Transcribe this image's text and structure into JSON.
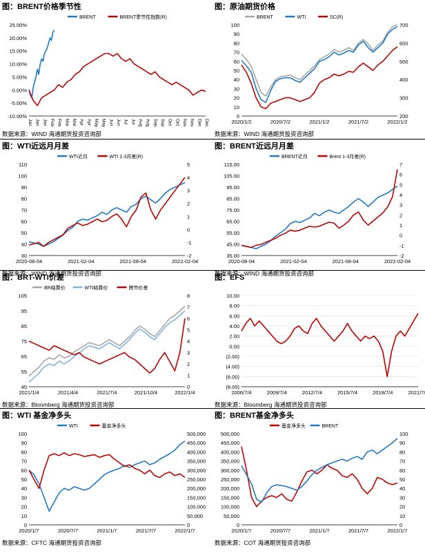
{
  "chart_data": [
    {
      "type": "line",
      "title": "图：BRENT价格季节性",
      "source": "数据来源：WIND    海通期货投资咨询部",
      "legend_position": "top",
      "x_ticks": [
        "Jan",
        "Jan",
        "Jan",
        "Feb",
        "Feb",
        "Mar",
        "Mar",
        "Apr",
        "Apr",
        "May",
        "May",
        "Jun",
        "Jun",
        "Jul",
        "Jul",
        "Aug",
        "Aug",
        "Sep",
        "Sep",
        "Oct",
        "Oct",
        "Nov",
        "Nov",
        "Dec",
        "Dec"
      ],
      "y_left_ticks": [
        "25.00%",
        "20.00%",
        "15.00%",
        "10.00%",
        "5.00%",
        "0.00%",
        "-5.00%",
        "-10.00%"
      ],
      "y_left_range": [
        -10,
        25
      ],
      "series": [
        {
          "name": "BRENT",
          "color": "#1f77c8",
          "axis": "left",
          "x": [
            0,
            2,
            4,
            6,
            8,
            10,
            12,
            14,
            16,
            18,
            20,
            22,
            24,
            26,
            28,
            30,
            32,
            34,
            36
          ],
          "y": [
            0,
            -2,
            -3,
            1,
            3,
            5,
            8,
            6,
            10,
            12,
            11,
            14,
            15,
            16,
            18,
            20,
            19,
            22,
            23
          ]
        },
        {
          "name": "BRENT季节性指数(R)",
          "color": "#c00000",
          "axis": "left",
          "x": [
            0,
            6,
            12,
            18,
            24,
            30,
            36,
            42,
            48,
            54,
            60,
            66,
            72,
            78,
            84,
            90,
            96,
            102,
            108,
            114,
            120,
            126,
            132,
            138,
            144,
            150,
            156,
            162,
            168,
            174,
            180,
            186,
            192,
            198,
            204,
            210,
            216,
            222,
            228,
            234,
            240,
            246,
            252
          ],
          "y": [
            0,
            -4,
            -6,
            -3,
            -2,
            -1,
            0,
            2,
            1,
            3,
            4,
            6,
            7,
            9,
            10,
            11,
            12,
            13,
            14,
            14,
            13,
            14,
            12,
            11,
            12,
            10,
            9,
            8,
            7,
            6,
            7,
            5,
            4,
            3,
            2,
            3,
            2,
            1,
            0,
            -2,
            -1,
            0,
            -0.5
          ]
        }
      ]
    },
    {
      "type": "line",
      "title": "图：原油期货价格",
      "source": "数据来源：WIND    海通期货投资咨询部",
      "legend_position": "top",
      "x_ticks": [
        "2020/1/2",
        "2020/7/2",
        "2021/1/2",
        "2021/7/2",
        "2022/1/2"
      ],
      "y_left_ticks": [
        "100",
        "90",
        "80",
        "70",
        "60",
        "50",
        "40",
        "30",
        "20",
        "10",
        "0"
      ],
      "y_right_ticks": [
        "700",
        "600",
        "500",
        "400",
        "300",
        "200"
      ],
      "y_left_range": [
        0,
        100
      ],
      "y_right_range": [
        200,
        700
      ],
      "series": [
        {
          "name": "BRENT",
          "color": "#a6a6a6",
          "axis": "left",
          "y": [
            68,
            62,
            55,
            40,
            26,
            22,
            32,
            40,
            43,
            44,
            45,
            42,
            40,
            45,
            50,
            55,
            62,
            65,
            68,
            73,
            70,
            72,
            75,
            72,
            80,
            84,
            79,
            72,
            78,
            82,
            92,
            98,
            100
          ]
        },
        {
          "name": "WTI",
          "color": "#1f77c8",
          "axis": "left",
          "y": [
            61,
            55,
            48,
            30,
            18,
            15,
            28,
            38,
            41,
            42,
            42,
            39,
            37,
            42,
            47,
            52,
            60,
            62,
            65,
            70,
            67,
            69,
            72,
            70,
            78,
            82,
            75,
            70,
            75,
            80,
            90,
            95,
            98
          ]
        },
        {
          "name": "SC(R)",
          "color": "#c00000",
          "axis": "right",
          "y": [
            480,
            440,
            380,
            300,
            250,
            240,
            270,
            280,
            290,
            300,
            300,
            290,
            280,
            290,
            300,
            330,
            380,
            400,
            410,
            430,
            420,
            430,
            445,
            440,
            470,
            490,
            470,
            450,
            480,
            500,
            530,
            560,
            580
          ]
        }
      ]
    },
    {
      "type": "line",
      "title": "图：WTI近远月月差",
      "source": "数据来源：WIND    海通期货投资咨询部",
      "legend_position": "top",
      "x_ticks": [
        "2020-08-04",
        "2021-02-04",
        "2021-08-04",
        "2022-02-04"
      ],
      "y_left_ticks": [
        "110",
        "100",
        "90",
        "80",
        "70",
        "60",
        "50",
        "40",
        "30"
      ],
      "y_right_ticks": [
        "5",
        "4",
        "3",
        "2",
        "1",
        "0",
        "-1",
        "-2"
      ],
      "y_left_range": [
        30,
        110
      ],
      "y_right_range": [
        -2,
        5
      ],
      "series": [
        {
          "name": "WTI近月",
          "color": "#1f77c8",
          "axis": "left",
          "y": [
            42,
            41,
            40,
            38,
            40,
            42,
            45,
            48,
            52,
            55,
            60,
            62,
            61,
            63,
            65,
            68,
            66,
            70,
            72,
            70,
            68,
            73,
            75,
            80,
            82,
            79,
            76,
            80,
            85,
            88,
            90,
            92,
            94
          ]
        },
        {
          "name": "WTI 1-3月差(R)",
          "color": "#c00000",
          "axis": "right",
          "y": [
            -1.2,
            -1.1,
            -1.0,
            -1.3,
            -1.0,
            -0.8,
            -0.6,
            -0.4,
            0.1,
            0.3,
            0.5,
            0.3,
            0.4,
            0.6,
            0.8,
            0.6,
            0.7,
            1.0,
            1.2,
            0.8,
            0.2,
            1.0,
            1.5,
            2.5,
            2.8,
            1.5,
            0.8,
            1.5,
            2.0,
            2.5,
            3.0,
            3.5,
            4.0
          ]
        }
      ]
    },
    {
      "type": "line",
      "title": "图：BRENT近远月月差",
      "source": "数据来源：WIND    海通期货投资咨询部",
      "legend_position": "top",
      "x_ticks": [
        "2020-08-04",
        "2021-02-04",
        "2021-08-04",
        "2022-02-04"
      ],
      "y_left_ticks": [
        "115.00",
        "105.00",
        "95.00",
        "85.00",
        "75.00",
        "65.00",
        "55.00",
        "45.00",
        "35.00"
      ],
      "y_right_ticks": [
        "7",
        "6",
        "5",
        "4",
        "3",
        "2",
        "1",
        "0",
        "-1",
        "-2"
      ],
      "y_left_range": [
        35,
        115
      ],
      "y_right_range": [
        -2,
        7
      ],
      "series": [
        {
          "name": "BRENT近月",
          "color": "#1f77c8",
          "axis": "left",
          "y": [
            44,
            43,
            42,
            41,
            43,
            45,
            48,
            52,
            55,
            58,
            63,
            65,
            64,
            66,
            68,
            72,
            70,
            73,
            75,
            73,
            72,
            75,
            78,
            82,
            85,
            82,
            78,
            82,
            86,
            88,
            90,
            93,
            96
          ]
        },
        {
          "name": "Brent 1-3月差(R)",
          "color": "#c00000",
          "axis": "right",
          "y": [
            -1.0,
            -1.1,
            -1.2,
            -1.0,
            -0.9,
            -0.7,
            -0.5,
            -0.3,
            0.0,
            0.2,
            0.5,
            0.4,
            0.5,
            0.7,
            0.9,
            0.8,
            0.9,
            1.1,
            1.3,
            1.2,
            0.7,
            1.0,
            1.4,
            2.0,
            2.3,
            1.5,
            1.0,
            1.4,
            1.8,
            2.2,
            2.8,
            3.8,
            6.5
          ]
        }
      ]
    },
    {
      "type": "line",
      "title": "图：BRT-WTI价差",
      "source": "数据来源：Bloomberg    海通期货投资咨询部",
      "legend_position": "top",
      "x_ticks": [
        "2021/1/4",
        "2021/4/4",
        "2021/7/4",
        "2021/10/4",
        "2022/1/4"
      ],
      "y_left_ticks": [
        "105",
        "95",
        "85",
        "75",
        "65",
        "55",
        "45"
      ],
      "y_right_ticks": [
        "8",
        "7",
        "6",
        "5",
        "4",
        "3",
        "2",
        "1",
        "0"
      ],
      "y_left_range": [
        45,
        105
      ],
      "y_right_range": [
        0,
        8
      ],
      "series": [
        {
          "name": "BR结算价",
          "color": "#a6a6a6",
          "axis": "left",
          "y": [
            52,
            55,
            58,
            62,
            64,
            63,
            66,
            64,
            65,
            68,
            70,
            72,
            74,
            73,
            72,
            74,
            76,
            74,
            72,
            75,
            78,
            82,
            85,
            83,
            80,
            78,
            82,
            86,
            90,
            92,
            95,
            98
          ]
        },
        {
          "name": "WTI结算价",
          "color": "#7fb2e0",
          "axis": "left",
          "y": [
            48,
            51,
            54,
            58,
            60,
            59,
            62,
            60,
            62,
            65,
            67,
            70,
            72,
            71,
            70,
            72,
            74,
            72,
            70,
            73,
            76,
            80,
            83,
            81,
            78,
            76,
            80,
            84,
            87,
            89,
            92,
            95
          ]
        },
        {
          "name": "跨市价差",
          "color": "#c00000",
          "axis": "right",
          "y": [
            4.0,
            3.8,
            3.6,
            3.4,
            3.2,
            3.6,
            3.4,
            3.2,
            3.0,
            2.8,
            3.0,
            2.6,
            2.4,
            2.2,
            2.0,
            2.2,
            2.4,
            2.6,
            2.8,
            3.0,
            2.6,
            2.4,
            2.0,
            1.6,
            1.2,
            1.6,
            2.4,
            3.0,
            2.2,
            1.4,
            3.0,
            6.0
          ]
        }
      ]
    },
    {
      "type": "line",
      "title": "图：EFS",
      "source": "数据来源：Bloomberg    海通期货投资咨询部",
      "legend_position": "none",
      "x_ticks": [
        "2006/7/4",
        "2009/7/4",
        "2012/7/4",
        "2015/7/4",
        "2018/7/4",
        "2021/7/4"
      ],
      "y_left_ticks": [
        "10.00",
        "8.00",
        "6.00",
        "4.00",
        "2.00",
        "0.00",
        "(2.00)",
        "(4.00)",
        "(6.00)",
        "(8.00)"
      ],
      "y_left_range": [
        -8,
        10
      ],
      "series": [
        {
          "name": "EFS",
          "color": "#c00000",
          "axis": "left",
          "y": [
            3.0,
            4.5,
            5.5,
            4.0,
            5.0,
            4.0,
            3.0,
            2.0,
            1.0,
            0.5,
            1.0,
            2.0,
            3.5,
            4.0,
            3.0,
            2.5,
            4.5,
            5.5,
            4.0,
            3.0,
            2.0,
            1.0,
            2.0,
            3.0,
            4.5,
            3.0,
            2.0,
            1.0,
            2.0,
            1.5,
            2.0,
            1.0,
            -1.0,
            -6.0,
            -1.0,
            2.0,
            3.0,
            2.0,
            3.5,
            5.0,
            6.5
          ]
        }
      ]
    },
    {
      "type": "line",
      "title": "图：WTI 基金净多头",
      "source": "数据来源：CFTC   海通期货投资咨询部",
      "legend_position": "top",
      "x_ticks": [
        "2020/1/7",
        "2020/7/7",
        "2021/1/7",
        "2021/7/7",
        "2022/1/7"
      ],
      "y_left_ticks": [
        "100",
        "90",
        "80",
        "70",
        "60",
        "50",
        "40",
        "30",
        "20",
        "10",
        "0"
      ],
      "y_right_ticks": [
        "500,000",
        "450,000",
        "400,000",
        "350,000",
        "300,000",
        "250,000",
        "200,000",
        "150,000",
        "100,000",
        "50,000",
        "0"
      ],
      "y_left_range": [
        0,
        100
      ],
      "y_right_range": [
        0,
        500000
      ],
      "series": [
        {
          "name": "WTI",
          "color": "#1f77c8",
          "axis": "left",
          "y": [
            60,
            55,
            45,
            30,
            15,
            25,
            35,
            40,
            38,
            42,
            40,
            38,
            40,
            45,
            50,
            55,
            58,
            60,
            62,
            65,
            63,
            66,
            68,
            70,
            66,
            68,
            72,
            75,
            78,
            82,
            88,
            92
          ]
        },
        {
          "name": "基金净多头",
          "color": "#c00000",
          "axis": "right",
          "y": [
            300000,
            250000,
            200000,
            300000,
            380000,
            390000,
            380000,
            395000,
            380000,
            390000,
            385000,
            375000,
            380000,
            385000,
            370000,
            380000,
            385000,
            360000,
            340000,
            320000,
            330000,
            310000,
            300000,
            280000,
            300000,
            270000,
            260000,
            280000,
            290000,
            270000,
            280000,
            260000
          ]
        }
      ]
    },
    {
      "type": "line",
      "title": "图：BRENT基金净多头",
      "source": "数据来源：COT   海通期货投资咨询部",
      "legend_position": "top",
      "x_ticks": [
        "2020/1/7",
        "2020/7/7",
        "2021/1/7",
        "2021/7/7",
        "2022/1/7"
      ],
      "y_left_ticks": [
        "500,000",
        "450,000",
        "400,000",
        "350,000",
        "300,000",
        "250,000",
        "200,000",
        "150,000",
        "100,000",
        "50,000",
        "0"
      ],
      "y_right_ticks": [
        "100",
        "90",
        "80",
        "70",
        "60",
        "50",
        "40",
        "30",
        "20",
        "10",
        "0"
      ],
      "y_left_range": [
        0,
        500000
      ],
      "y_right_range": [
        0,
        100
      ],
      "series": [
        {
          "name": "基金净多头",
          "color": "#c00000",
          "axis": "left",
          "y": [
            430000,
            300000,
            150000,
            100000,
            130000,
            150000,
            160000,
            150000,
            170000,
            140000,
            130000,
            180000,
            240000,
            290000,
            300000,
            280000,
            300000,
            330000,
            310000,
            300000,
            270000,
            260000,
            280000,
            250000,
            200000,
            170000,
            200000,
            260000,
            250000,
            230000,
            220000,
            230000
          ]
        },
        {
          "name": "BRENT",
          "color": "#1f77c8",
          "axis": "right",
          "y": [
            65,
            55,
            45,
            28,
            25,
            35,
            42,
            44,
            43,
            42,
            40,
            38,
            42,
            48,
            55,
            60,
            63,
            66,
            68,
            70,
            72,
            70,
            73,
            75,
            72,
            80,
            82,
            78,
            82,
            86,
            90,
            95
          ]
        }
      ]
    }
  ]
}
